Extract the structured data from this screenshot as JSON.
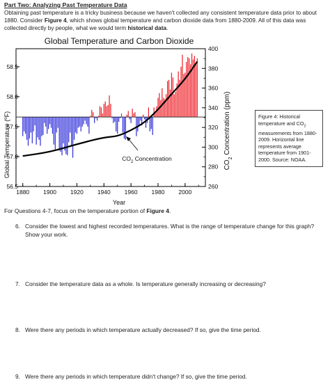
{
  "part_title": "Part Two: Analyzing Past Temperature Data",
  "intro": {
    "t1": "Obtaining past temperature is a tricky business because we haven't collected any consistent temperature data prior to about 1880. Consider ",
    "fig_ref": "Figure 4",
    "t2": ", which shows global temperature and carbon dioxide data from 1880-2009. All of this data was collected directly by people, what we would term ",
    "bold_term": "historical data",
    "t3": "."
  },
  "chart_data": {
    "type": "bar",
    "title": "Global Temperature and Carbon Dioxide",
    "xlabel": "Year",
    "ylabel_left": "Global Temperature (ºF)",
    "ylabel_right_pre": "CO",
    "ylabel_right_sub": "2",
    "ylabel_right_post": " Concentration (ppm)",
    "xlim": [
      1875,
      2015
    ],
    "ylim_left": [
      56.5,
      58.8
    ],
    "ylim_right": [
      260,
      400
    ],
    "baseline": 57.66,
    "x_ticks": [
      1880,
      1900,
      1920,
      1940,
      1960,
      1980,
      2000
    ],
    "y_left_ticks": [
      57.0,
      57.5,
      58.0,
      58.5
    ],
    "y_left_tick_labels": [
      "57.0",
      "57.5",
      "58.0",
      "58.5"
    ],
    "y_right_ticks": [
      280,
      300,
      320,
      340,
      360,
      380,
      400
    ],
    "annotation_pre": "CO",
    "annotation_sub": "2",
    "annotation_post": " Concentration",
    "years": [
      1880,
      1881,
      1882,
      1883,
      1884,
      1885,
      1886,
      1887,
      1888,
      1889,
      1890,
      1891,
      1892,
      1893,
      1894,
      1895,
      1896,
      1897,
      1898,
      1899,
      1900,
      1901,
      1902,
      1903,
      1904,
      1905,
      1906,
      1907,
      1908,
      1909,
      1910,
      1911,
      1912,
      1913,
      1914,
      1915,
      1916,
      1917,
      1918,
      1919,
      1920,
      1921,
      1922,
      1923,
      1924,
      1925,
      1926,
      1927,
      1928,
      1929,
      1930,
      1931,
      1932,
      1933,
      1934,
      1935,
      1936,
      1937,
      1938,
      1939,
      1940,
      1941,
      1942,
      1943,
      1944,
      1945,
      1946,
      1947,
      1948,
      1949,
      1950,
      1951,
      1952,
      1953,
      1954,
      1955,
      1956,
      1957,
      1958,
      1959,
      1960,
      1961,
      1962,
      1963,
      1964,
      1965,
      1966,
      1967,
      1968,
      1969,
      1970,
      1971,
      1972,
      1973,
      1974,
      1975,
      1976,
      1977,
      1978,
      1979,
      1980,
      1981,
      1982,
      1983,
      1984,
      1985,
      1986,
      1987,
      1988,
      1989,
      1990,
      1991,
      1992,
      1993,
      1994,
      1995,
      1996,
      1997,
      1998,
      1999,
      2000,
      2001,
      2002,
      2003,
      2004,
      2005,
      2006,
      2007,
      2008,
      2009
    ],
    "temperature_f": [
      57.34,
      57.42,
      57.38,
      57.28,
      57.18,
      57.3,
      57.4,
      57.22,
      57.42,
      57.52,
      57.2,
      57.32,
      57.28,
      57.18,
      57.34,
      57.36,
      57.56,
      57.5,
      57.38,
      57.46,
      57.54,
      57.48,
      57.38,
      57.2,
      57.12,
      57.4,
      57.48,
      57.1,
      57.08,
      57.02,
      57.22,
      57.1,
      57.04,
      57.02,
      57.24,
      57.4,
      57.18,
      56.98,
      57.28,
      57.4,
      57.38,
      57.48,
      57.5,
      57.42,
      57.5,
      57.54,
      57.6,
      57.54,
      57.5,
      57.38,
      57.68,
      57.78,
      57.74,
      57.56,
      57.64,
      57.6,
      57.68,
      57.84,
      57.82,
      57.72,
      57.88,
      57.92,
      57.84,
      57.86,
      58.02,
      57.88,
      57.64,
      57.56,
      57.58,
      57.42,
      57.38,
      57.58,
      57.64,
      57.72,
      57.4,
      57.3,
      57.28,
      57.7,
      57.76,
      57.62,
      57.56,
      57.8,
      57.72,
      57.74,
      57.34,
      57.42,
      57.52,
      57.6,
      57.52,
      57.7,
      57.62,
      57.48,
      57.56,
      57.82,
      57.42,
      57.46,
      57.36,
      57.82,
      57.72,
      57.84,
      57.98,
      58.06,
      57.94,
      58.14,
      57.98,
      57.96,
      58.04,
      58.26,
      58.28,
      58.12,
      58.4,
      58.32,
      58.04,
      58.08,
      58.22,
      58.42,
      58.28,
      58.5,
      58.7,
      58.38,
      58.4,
      58.58,
      58.66,
      58.64,
      58.54,
      58.72,
      58.62,
      58.68,
      58.56,
      58.64
    ],
    "co2_years": [
      1880,
      1900,
      1920,
      1940,
      1950,
      1960,
      1970,
      1980,
      1990,
      2000,
      2009
    ],
    "co2_ppm": [
      291,
      295,
      303,
      310,
      311,
      317,
      325,
      338,
      354,
      369,
      387
    ]
  },
  "caption": {
    "l1_pre": "Figure 4: Historical temperature and CO",
    "l1_sub": "2",
    "l2": " measurements from 1880-2009. Horizontal line represents average temperature from 1901-2000. Source: NOAA."
  },
  "focus": {
    "pre": "For Questions 4-7, focus on the temperature portion of ",
    "ref": "Figure 4",
    "post": "."
  },
  "questions": [
    {
      "num": "6.",
      "text": "Consider the lowest and highest recorded temperatures. What is the range of temperature change for this graph? Show your work."
    },
    {
      "num": "7.",
      "text": "Consider the temperature data as a whole. Is temperature generally increasing or decreasing?"
    },
    {
      "num": "8.",
      "text": "Were there any periods in which temperature actually decreased? If so, give the time period."
    },
    {
      "num": "9.",
      "text": "Were there any periods in which temperature didn't change? If so, give the time period."
    }
  ]
}
